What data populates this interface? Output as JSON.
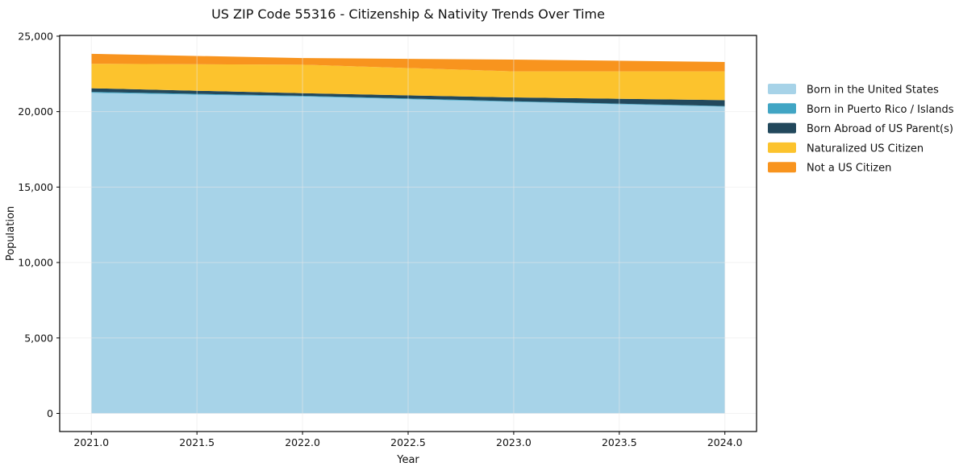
{
  "chart_data": {
    "type": "area",
    "stacked": true,
    "title": "US ZIP Code 55316 - Citizenship & Nativity Trends Over Time",
    "xlabel": "Year",
    "ylabel": "Population",
    "x": [
      2021,
      2022,
      2023,
      2024
    ],
    "series": [
      {
        "name": "Born in the United States",
        "color": "#a7d3e8",
        "values": [
          21250,
          21000,
          20650,
          20330
        ]
      },
      {
        "name": "Born in Puerto Rico / Islands",
        "color": "#41a5c4",
        "values": [
          60,
          50,
          40,
          40
        ]
      },
      {
        "name": "Born Abroad of US Parent(s)",
        "color": "#22485c",
        "values": [
          240,
          170,
          250,
          390
        ]
      },
      {
        "name": "Naturalized US Citizen",
        "color": "#fcc32d",
        "values": [
          1620,
          1890,
          1730,
          1910
        ]
      },
      {
        "name": "Not a US Citizen",
        "color": "#f8941e",
        "values": [
          660,
          440,
          780,
          620
        ]
      }
    ],
    "totals": [
      23830,
      23550,
      23450,
      23290
    ],
    "xticks": [
      {
        "v": 2021.0,
        "label": "2021.0"
      },
      {
        "v": 2021.5,
        "label": "2021.5"
      },
      {
        "v": 2022.0,
        "label": "2022.0"
      },
      {
        "v": 2022.5,
        "label": "2022.5"
      },
      {
        "v": 2023.0,
        "label": "2023.0"
      },
      {
        "v": 2023.5,
        "label": "2023.5"
      },
      {
        "v": 2024.0,
        "label": "2024.0"
      }
    ],
    "yticks": [
      {
        "v": 0,
        "label": "0"
      },
      {
        "v": 5000,
        "label": "5,000"
      },
      {
        "v": 10000,
        "label": "10,000"
      },
      {
        "v": 15000,
        "label": "15,000"
      },
      {
        "v": 20000,
        "label": "20,000"
      },
      {
        "v": 25000,
        "label": "25,000"
      }
    ],
    "xlim": [
      2020.85,
      2024.15
    ],
    "ylim": [
      -1200,
      25050
    ],
    "grid": true,
    "grid_color": "#e7e7e7",
    "spine_color": "#000000",
    "background": "#ffffff",
    "legend_position": "right-outside"
  }
}
